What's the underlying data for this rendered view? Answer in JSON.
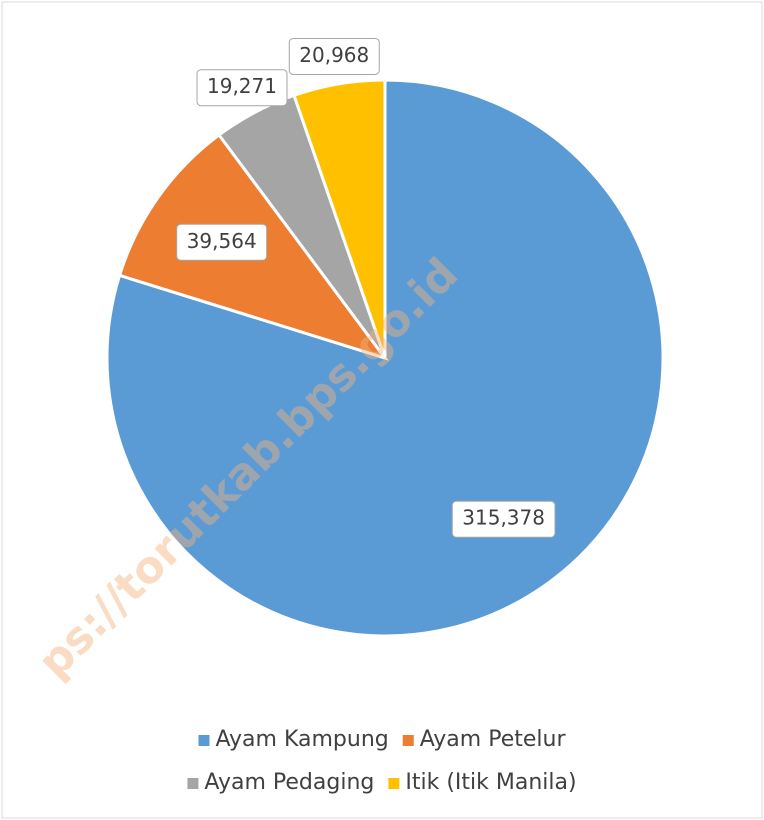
{
  "chart_data": {
    "type": "pie",
    "categories": [
      "Ayam Kampung",
      "Ayam Petelur",
      "Ayam Pedaging",
      "Itik (Itik Manila)"
    ],
    "values": [
      315378,
      39564,
      19271,
      20968
    ],
    "value_labels": [
      "315,378",
      "39,564",
      "19,271",
      "20,968"
    ],
    "colors": [
      "#5b9bd5",
      "#ed7d31",
      "#a5a5a5",
      "#ffc000"
    ],
    "legend": "bottom",
    "watermark": "ps://torutkab.bps.go.id"
  }
}
